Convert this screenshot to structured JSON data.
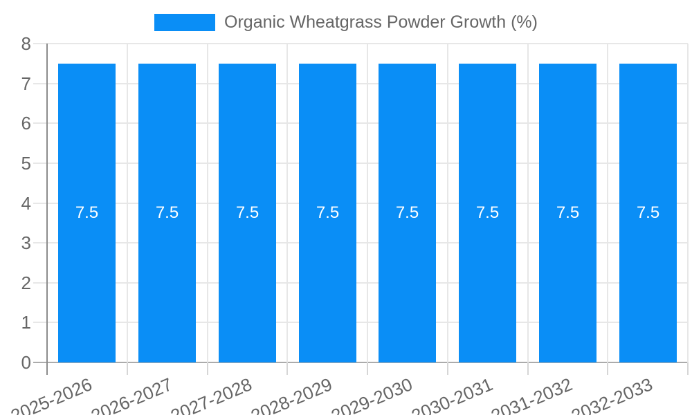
{
  "legend": {
    "label": "Organic Wheatgrass Powder Growth (%)"
  },
  "chart_data": {
    "type": "bar",
    "title": "Organic Wheatgrass Powder Growth (%)",
    "series_name": "Organic Wheatgrass Powder Growth (%)",
    "categories": [
      "2025-2026",
      "2026-2027",
      "2027-2028",
      "2028-2029",
      "2029-2030",
      "2030-2031",
      "2031-2032",
      "2032-2033"
    ],
    "values": [
      7.5,
      7.5,
      7.5,
      7.5,
      7.5,
      7.5,
      7.5,
      7.5
    ],
    "bar_labels": [
      "7.5",
      "7.5",
      "7.5",
      "7.5",
      "7.5",
      "7.5",
      "7.5",
      "7.5"
    ],
    "xlabel": "",
    "ylabel": "",
    "ylim": [
      0,
      8
    ],
    "yticks": [
      0,
      1,
      2,
      3,
      4,
      5,
      6,
      7,
      8
    ],
    "grid": true,
    "legend_position": "top",
    "colors": {
      "bar": "#0a8ef6",
      "bar_label": "#ffffff",
      "grid_line": "#e7e7e7",
      "tick_line": "#d6d6d6",
      "x_axis_line": "#ababab",
      "y_axis_line": "#8c8c8c",
      "tick_label": "#666666",
      "legend_text": "#666666"
    }
  }
}
